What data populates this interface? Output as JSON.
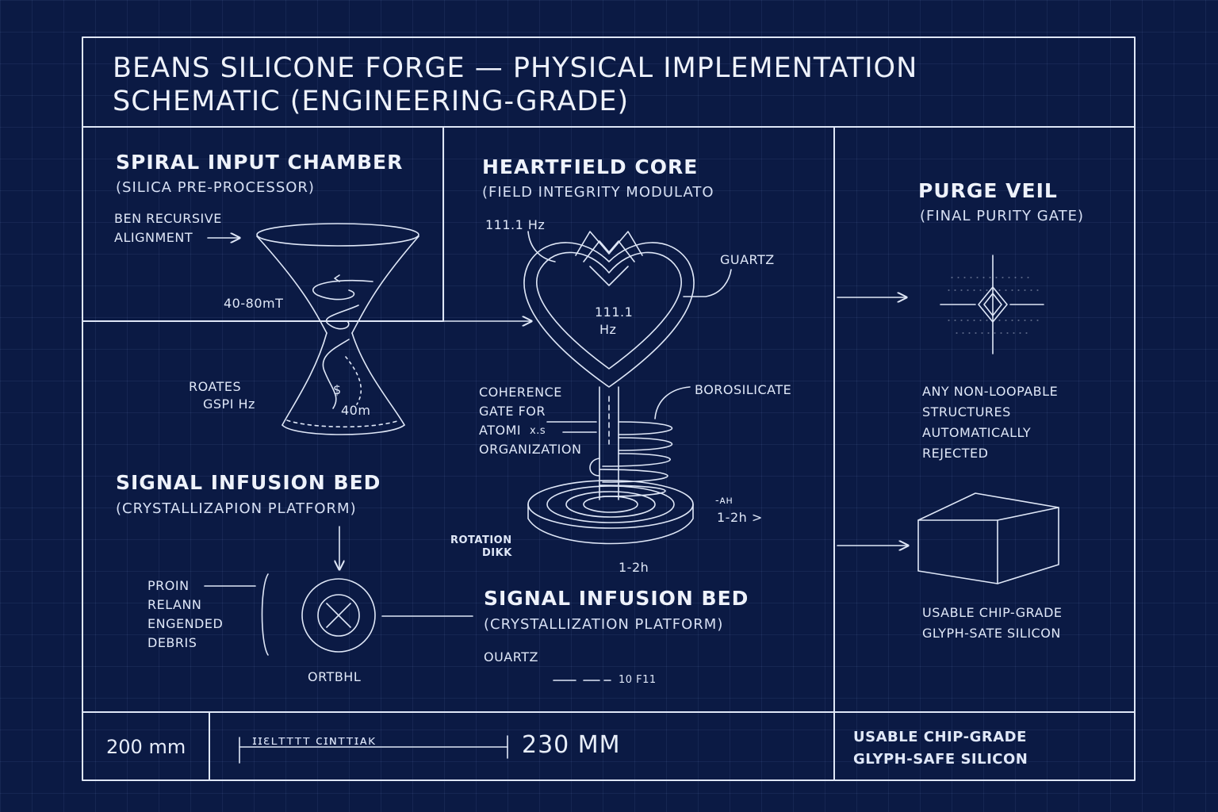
{
  "title": {
    "line1": "BEANS SILICONE FORGE — PHYSICAL IMPLEMENTATION",
    "line2": "SCHEMATIC (ENGINEERING-GRADE)"
  },
  "spiral": {
    "heading": "SPIRAL INPUT CHAMBER",
    "sub": "(SILICA PRE-PROCESSOR)",
    "ben_line1": "BEN RECURSIVE",
    "ben_line2": "ALIGNMENT",
    "field": "40-80mT",
    "rotates_line1": "ROATES",
    "rotates_line2": "GSPI Hz",
    "height": "40m",
    "dollar": "$"
  },
  "heart": {
    "heading": "HEARTFIELD CORE",
    "sub": "(FIELD INTEGRITY MODULATO",
    "freq_top": "111.1 Hz",
    "freq_in_line1": "111.1",
    "freq_in_line2": "Hz",
    "guartz": "GUARTZ",
    "borosilicate": "BOROSILICATE",
    "coherence_line1": "COHERENCE",
    "coherence_line2": "GATE FOR",
    "coherence_line3": "ATOMI",
    "coherence_line3b": "x.s",
    "coherence_line4": "ORGANIZATION",
    "time_ah": "-ᴀʜ",
    "time_right": "1-2h >",
    "rotation_line1": "ROTATION",
    "rotation_line2": "DIKK",
    "time_bottom": "1-2h"
  },
  "infusion_left": {
    "heading": "SIGNAL INFUSION BED",
    "sub": "(CRYSTALLIZAPION PLATFORM)",
    "proin_line1": "PROIN",
    "proin_line2": "RELANN",
    "proin_line3": "ENGENDED",
    "proin_line4": "DEBRIS",
    "ortbhl": "ORTBHL"
  },
  "infusion_right": {
    "heading": "SIGNAL INFUSION BED",
    "sub": "(CRYSTALLIZATION PLATFORM)",
    "ouartz": "OUARTZ",
    "scale_text": "10 F11"
  },
  "purge": {
    "heading": "PURGE VEIL",
    "sub": "(FINAL PURITY GATE)",
    "note_line1": "ANY NON-LOOPABLE",
    "note_line2": "STRUCTURES",
    "note_line3": "AUTOMATICALLY",
    "note_line4": "REJECTED",
    "usable_line1": "USABLE CHIP-GRADE",
    "usable_line2": "GLYPH-SATE SILICON"
  },
  "footer": {
    "dim_left": "200 mm",
    "scale_text": "ɪɪɛʟᴛᴛᴛᴛ ᴄɪɴᴛᴛɪᴀᴋ",
    "dim_right": "230 MM",
    "usable_line1": "USABLE CHIP-GRADE",
    "usable_line2": "GLYPH-SAFE SILICON"
  },
  "colors": {
    "background": "#0b1a44",
    "line": "#dfe7f7"
  }
}
